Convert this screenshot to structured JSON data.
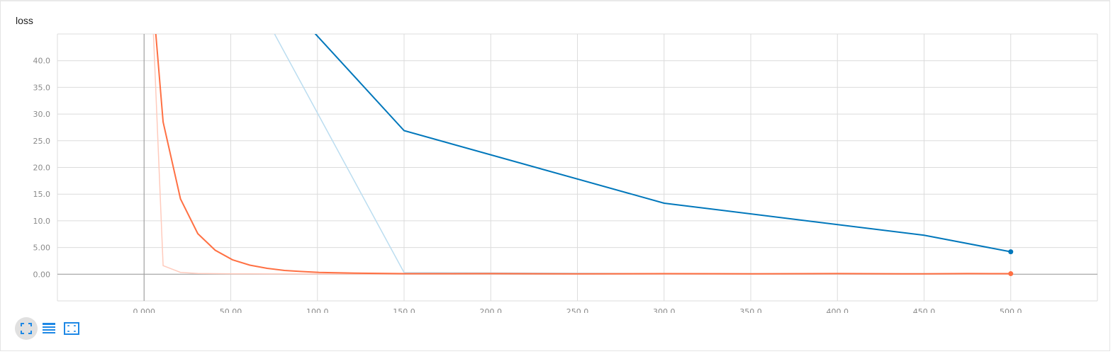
{
  "card": {
    "title": "loss"
  },
  "toolbar": {
    "buttons": [
      {
        "name": "expand-icon",
        "active": true
      },
      {
        "name": "data-selection-icon",
        "active": false
      },
      {
        "name": "fit-domain-icon",
        "active": false
      }
    ]
  },
  "chart_data": {
    "type": "line",
    "title": "loss",
    "xlabel": "",
    "ylabel": "",
    "xlim": [
      -50,
      550
    ],
    "ylim": [
      -5,
      45
    ],
    "x_ticks": [
      "0.000",
      "50.00",
      "100.0",
      "150.0",
      "200.0",
      "250.0",
      "300.0",
      "350.0",
      "400.0",
      "450.0",
      "500.0"
    ],
    "y_ticks": [
      "0.00",
      "5.00",
      "10.0",
      "15.0",
      "20.0",
      "25.0",
      "30.0",
      "35.0",
      "40.0"
    ],
    "grid": true,
    "series": [
      {
        "color": "#0077bb",
        "color_raw": "#bbddf0",
        "smoothed": [
          [
            0,
            80
          ],
          [
            150,
            26.9
          ],
          [
            300,
            13.3
          ],
          [
            450,
            7.3
          ],
          [
            500,
            4.2
          ]
        ],
        "raw": [
          [
            0,
            90
          ],
          [
            150,
            0.3
          ],
          [
            300,
            0.1
          ],
          [
            450,
            0.1
          ],
          [
            500,
            0.1
          ]
        ]
      },
      {
        "color": "#ff7043",
        "color_raw": "#ffcbbd",
        "smoothed": [
          [
            6,
            48
          ],
          [
            11,
            28.5
          ],
          [
            21,
            14.1
          ],
          [
            31,
            7.6
          ],
          [
            41,
            4.5
          ],
          [
            51,
            2.7
          ],
          [
            61,
            1.7
          ],
          [
            71,
            1.1
          ],
          [
            81,
            0.7
          ],
          [
            91,
            0.5
          ],
          [
            101,
            0.35
          ],
          [
            121,
            0.2
          ],
          [
            150,
            0.1
          ],
          [
            200,
            0.12
          ],
          [
            250,
            0.08
          ],
          [
            300,
            0.1
          ],
          [
            350,
            0.08
          ],
          [
            400,
            0.12
          ],
          [
            450,
            0.06
          ],
          [
            475,
            0.12
          ],
          [
            500,
            0.1
          ]
        ],
        "raw": [
          [
            5,
            48
          ],
          [
            11,
            1.6
          ],
          [
            21,
            0.35
          ],
          [
            31,
            0.15
          ],
          [
            41,
            0.1
          ],
          [
            51,
            0.08
          ],
          [
            61,
            0.06
          ],
          [
            81,
            0.05
          ],
          [
            101,
            0.05
          ],
          [
            150,
            0.04
          ],
          [
            200,
            0.05
          ],
          [
            300,
            0.04
          ],
          [
            400,
            0.05
          ],
          [
            500,
            0.04
          ]
        ]
      }
    ]
  }
}
